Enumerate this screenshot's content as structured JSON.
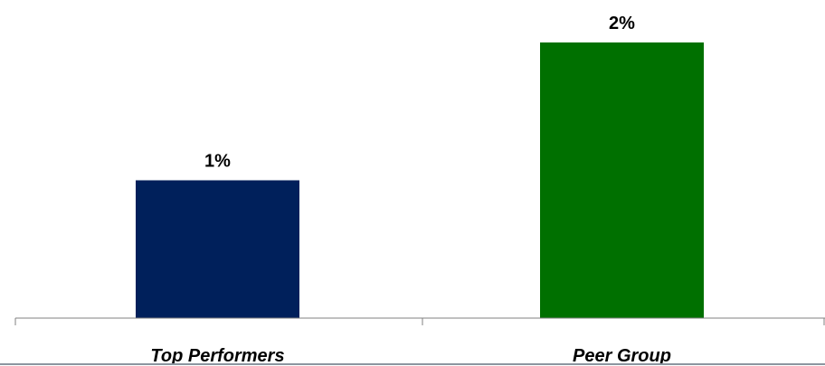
{
  "chart_data": {
    "type": "bar",
    "categories": [
      "Top Performers",
      "Peer Group"
    ],
    "values": [
      1,
      2
    ],
    "value_labels": [
      "1%",
      "2%"
    ],
    "colors": [
      "#00205b",
      "#007000"
    ],
    "title": "",
    "xlabel": "",
    "ylabel": "",
    "ylim": [
      0,
      2
    ],
    "grid": false,
    "legend": "none"
  }
}
